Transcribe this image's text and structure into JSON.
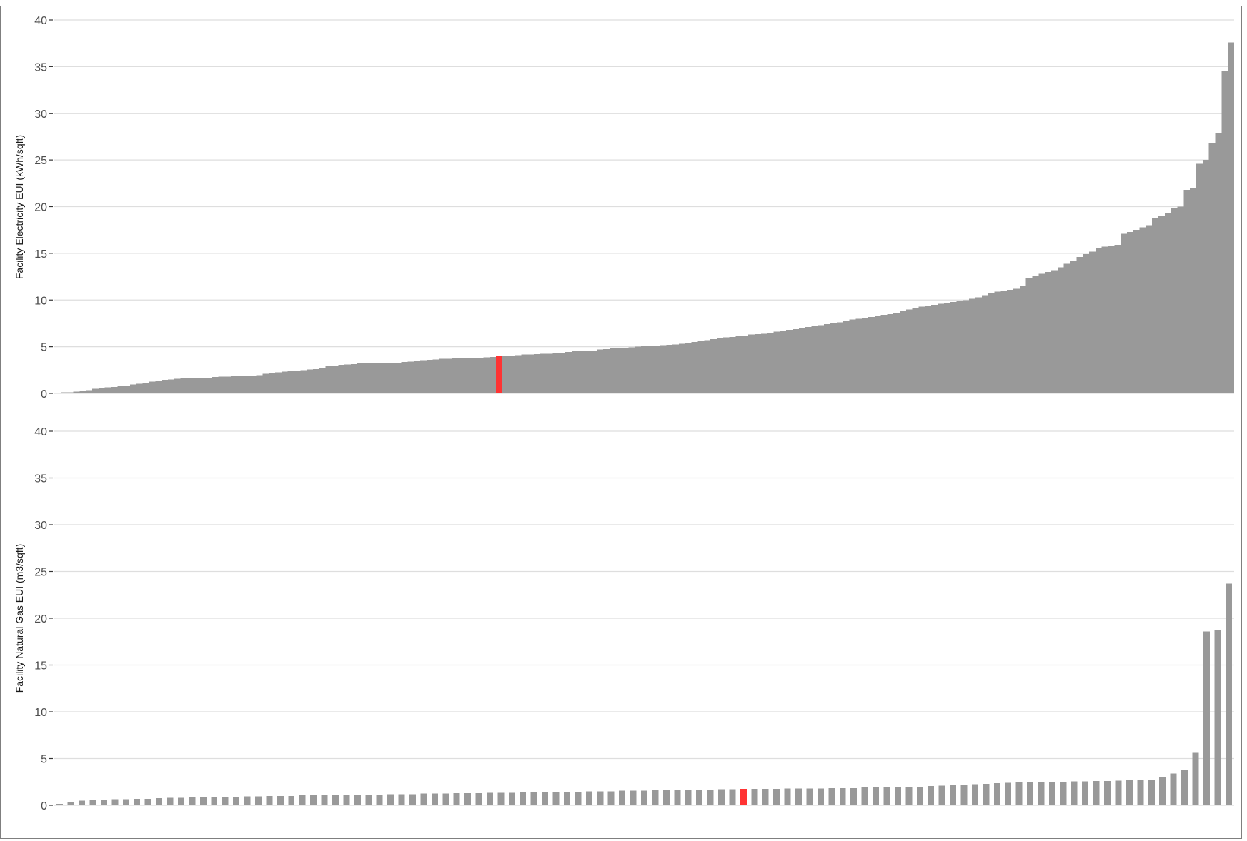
{
  "chart_data": [
    {
      "type": "bar",
      "title": "",
      "xlabel": "",
      "ylabel": "Facility Electricity EUI (kWh/sqft)",
      "ylim": [
        0,
        40
      ],
      "yticks": [
        "0",
        "5",
        "10",
        "15",
        "20",
        "25",
        "30",
        "35",
        "40"
      ],
      "grid": true,
      "legend": "none",
      "bar_color": "#999999",
      "highlight_color": "#ff3333",
      "highlight_index": 70,
      "values": [
        0.05,
        0.1,
        0.1,
        0.2,
        0.25,
        0.35,
        0.5,
        0.6,
        0.65,
        0.7,
        0.8,
        0.85,
        0.95,
        1.05,
        1.15,
        1.25,
        1.35,
        1.45,
        1.5,
        1.55,
        1.6,
        1.6,
        1.65,
        1.7,
        1.7,
        1.75,
        1.8,
        1.8,
        1.85,
        1.85,
        1.9,
        1.9,
        1.95,
        2.1,
        2.15,
        2.25,
        2.35,
        2.4,
        2.45,
        2.5,
        2.55,
        2.6,
        2.75,
        2.9,
        3.0,
        3.05,
        3.1,
        3.15,
        3.2,
        3.2,
        3.2,
        3.25,
        3.25,
        3.3,
        3.3,
        3.35,
        3.4,
        3.45,
        3.55,
        3.6,
        3.65,
        3.7,
        3.7,
        3.75,
        3.75,
        3.75,
        3.8,
        3.8,
        3.85,
        3.9,
        4.0,
        4.05,
        4.05,
        4.1,
        4.15,
        4.15,
        4.2,
        4.25,
        4.25,
        4.3,
        4.35,
        4.45,
        4.5,
        4.55,
        4.55,
        4.6,
        4.7,
        4.75,
        4.8,
        4.85,
        4.9,
        4.95,
        5.0,
        5.05,
        5.1,
        5.1,
        5.15,
        5.2,
        5.25,
        5.3,
        5.4,
        5.5,
        5.6,
        5.7,
        5.8,
        5.9,
        6.0,
        6.05,
        6.1,
        6.2,
        6.3,
        6.35,
        6.4,
        6.5,
        6.6,
        6.7,
        6.8,
        6.9,
        7.0,
        7.1,
        7.2,
        7.3,
        7.4,
        7.5,
        7.6,
        7.75,
        7.9,
        8.0,
        8.1,
        8.2,
        8.3,
        8.4,
        8.5,
        8.65,
        8.8,
        9.0,
        9.15,
        9.3,
        9.4,
        9.5,
        9.6,
        9.7,
        9.8,
        9.9,
        10.0,
        10.15,
        10.3,
        10.5,
        10.7,
        10.9,
        11.0,
        11.1,
        11.2,
        11.5,
        12.4,
        12.6,
        12.8,
        13.0,
        13.2,
        13.5,
        13.9,
        14.2,
        14.6,
        14.9,
        15.2,
        15.6,
        15.7,
        15.8,
        15.9,
        17.1,
        17.3,
        17.5,
        17.8,
        18.0,
        18.8,
        19.0,
        19.3,
        19.8,
        20.0,
        21.8,
        22.0,
        24.6,
        25.0,
        26.8,
        27.9,
        34.5,
        37.6
      ]
    },
    {
      "type": "bar",
      "title": "",
      "xlabel": "",
      "ylabel": "Facility Natural Gas EUI (m3/sqft)",
      "ylim": [
        0,
        40
      ],
      "yticks": [
        "0",
        "5",
        "10",
        "15",
        "20",
        "25",
        "30",
        "35",
        "40"
      ],
      "grid": true,
      "legend": "none",
      "bar_color": "#999999",
      "highlight_color": "#ff3333",
      "highlight_index": 62,
      "values": [
        0.15,
        0.4,
        0.5,
        0.55,
        0.6,
        0.65,
        0.65,
        0.7,
        0.7,
        0.75,
        0.8,
        0.8,
        0.85,
        0.85,
        0.9,
        0.9,
        0.9,
        0.95,
        0.95,
        1.0,
        1.0,
        1.0,
        1.05,
        1.05,
        1.1,
        1.1,
        1.1,
        1.15,
        1.15,
        1.15,
        1.2,
        1.2,
        1.2,
        1.25,
        1.25,
        1.25,
        1.3,
        1.3,
        1.3,
        1.35,
        1.35,
        1.35,
        1.4,
        1.4,
        1.4,
        1.45,
        1.45,
        1.45,
        1.5,
        1.5,
        1.5,
        1.55,
        1.55,
        1.55,
        1.6,
        1.6,
        1.6,
        1.65,
        1.65,
        1.65,
        1.7,
        1.7,
        1.75,
        1.75,
        1.75,
        1.75,
        1.8,
        1.8,
        1.8,
        1.8,
        1.85,
        1.85,
        1.85,
        1.9,
        1.9,
        1.95,
        1.95,
        2.0,
        2.0,
        2.05,
        2.1,
        2.15,
        2.2,
        2.25,
        2.3,
        2.35,
        2.4,
        2.45,
        2.45,
        2.5,
        2.5,
        2.5,
        2.55,
        2.55,
        2.6,
        2.6,
        2.65,
        2.7,
        2.7,
        2.75,
        3.0,
        3.4,
        3.75,
        5.6,
        18.6,
        18.7,
        23.7
      ]
    }
  ]
}
